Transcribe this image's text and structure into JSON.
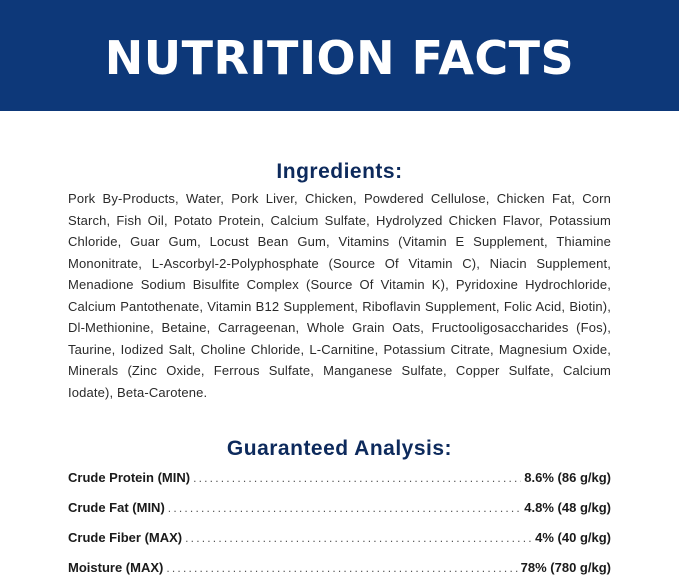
{
  "banner": {
    "title": "NUTRITION FACTS",
    "background": "#0d3879"
  },
  "ingredients": {
    "heading": "Ingredients:",
    "text": "Pork By-Products, Water, Pork Liver, Chicken, Powdered Cellulose, Chicken Fat, Corn Starch, Fish Oil, Potato Protein, Calcium Sulfate, Hydrolyzed Chicken Flavor, Potassium Chloride, Guar Gum, Locust Bean Gum, Vitamins (Vitamin E Supplement, Thiamine Mononitrate, L-Ascorbyl-2-Polyphosphate (Source Of Vitamin C), Niacin Supplement, Menadione Sodium Bisulfite Complex (Source Of Vitamin K), Pyridoxine Hydrochloride, Calcium Pantothenate, Vitamin B12 Supplement, Riboflavin Supplement, Folic Acid, Biotin), Dl-Methionine, Betaine, Carrageenan, Whole Grain Oats, Fructooligosaccharides (Fos), Taurine, Iodized Salt, Choline Chloride, L-Carnitine, Potassium Citrate, Magnesium Oxide, Minerals (Zinc Oxide, Ferrous Sulfate, Manganese Sulfate, Copper Sulfate, Calcium Iodate), Beta-Carotene."
  },
  "guaranteed_analysis": {
    "heading": "Guaranteed Analysis:",
    "rows": [
      {
        "name": "Crude Protein (MIN)",
        "value": "8.6% (86 g/kg)"
      },
      {
        "name": "Crude Fat (MIN)",
        "value": "4.8% (48 g/kg)"
      },
      {
        "name": "Crude Fiber (MAX)",
        "value": "4% (40 g/kg)"
      },
      {
        "name": "Moisture (MAX)",
        "value": "78% (780 g/kg)"
      }
    ]
  },
  "colors": {
    "banner": "#0d3879",
    "heading": "#0d2a5c",
    "text": "#2a2a2a"
  }
}
